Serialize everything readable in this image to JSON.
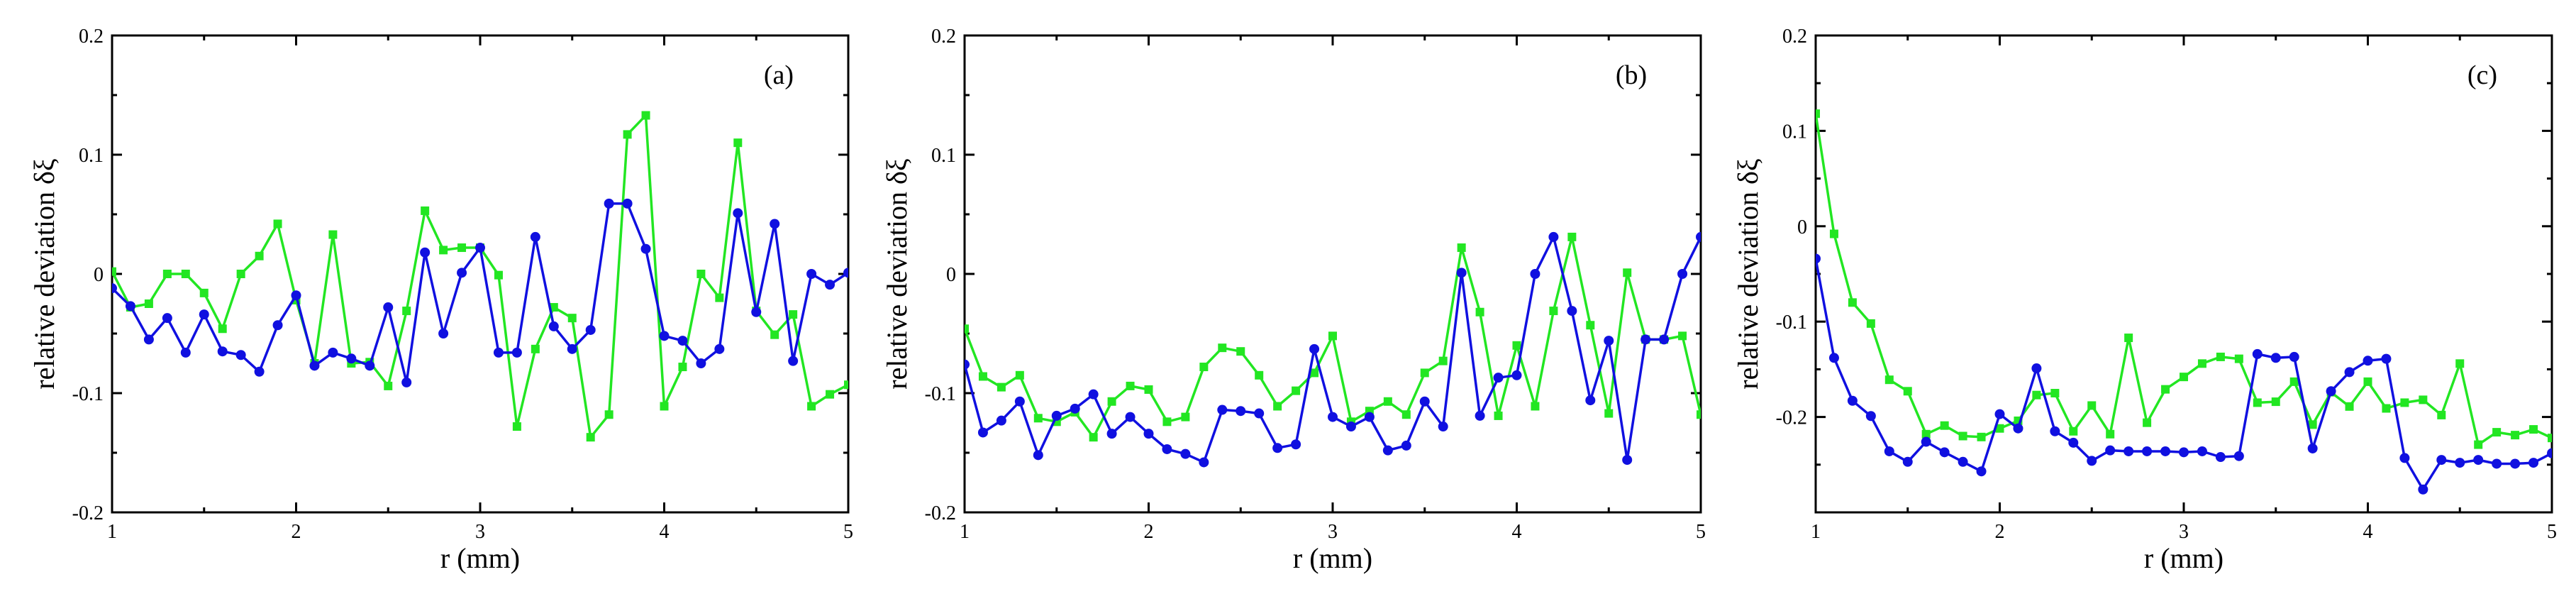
{
  "colors": {
    "blue": "#1010e0",
    "green": "#22e622"
  },
  "chart_data": [
    {
      "type": "line",
      "panel_label": "(a)",
      "xlabel": "r (mm)",
      "ylabel": "relative deviation δξ",
      "xlim": [
        1,
        5
      ],
      "ylim": [
        -0.2,
        0.2
      ],
      "xticks": [
        1,
        2,
        3,
        4,
        5
      ],
      "xtick_labels": [
        "1",
        "2",
        "3",
        "4",
        "5"
      ],
      "yticks": [
        -0.2,
        -0.1,
        0,
        0.1,
        0.2
      ],
      "ytick_labels": [
        "-0.2",
        "-0.1",
        "0",
        "0.1",
        "0.2"
      ],
      "series": [
        {
          "color": "blue",
          "marker": "circle",
          "x": [
            1.0,
            1.1,
            1.2,
            1.3,
            1.4,
            1.5,
            1.6,
            1.7,
            1.8,
            1.9,
            2.0,
            2.1,
            2.2,
            2.3,
            2.4,
            2.5,
            2.6,
            2.7,
            2.8,
            2.9,
            3.0,
            3.1,
            3.2,
            3.3,
            3.4,
            3.5,
            3.6,
            3.7,
            3.8,
            3.9,
            4.0,
            4.1,
            4.2,
            4.3,
            4.4,
            4.5,
            4.6,
            4.7,
            4.8,
            4.9,
            5.0
          ],
          "y": [
            -0.012,
            -0.027,
            -0.055,
            -0.037,
            -0.066,
            -0.034,
            -0.065,
            -0.068,
            -0.082,
            -0.043,
            -0.018,
            -0.077,
            -0.066,
            -0.071,
            -0.077,
            -0.028,
            -0.091,
            0.018,
            -0.05,
            0.001,
            0.022,
            -0.066,
            -0.066,
            0.031,
            -0.044,
            -0.063,
            -0.047,
            0.059,
            0.059,
            0.021,
            -0.052,
            -0.056,
            -0.075,
            -0.063,
            0.051,
            -0.032,
            0.042,
            -0.073,
            0.0,
            -0.009,
            0.001
          ]
        },
        {
          "color": "green",
          "marker": "square",
          "x": [
            1.0,
            1.1,
            1.2,
            1.3,
            1.4,
            1.5,
            1.6,
            1.7,
            1.8,
            1.9,
            2.0,
            2.1,
            2.2,
            2.3,
            2.4,
            2.5,
            2.6,
            2.7,
            2.8,
            2.9,
            3.0,
            3.1,
            3.2,
            3.3,
            3.4,
            3.5,
            3.6,
            3.7,
            3.8,
            3.9,
            4.0,
            4.1,
            4.2,
            4.3,
            4.4,
            4.5,
            4.6,
            4.7,
            4.8,
            4.9,
            5.0
          ],
          "y": [
            0.002,
            -0.028,
            -0.025,
            0.0,
            0.0,
            -0.016,
            -0.046,
            0.0,
            0.015,
            0.042,
            -0.022,
            -0.075,
            0.033,
            -0.075,
            -0.074,
            -0.094,
            -0.031,
            0.053,
            0.02,
            0.022,
            0.022,
            -0.001,
            -0.128,
            -0.063,
            -0.028,
            -0.037,
            -0.137,
            -0.118,
            0.117,
            0.133,
            -0.111,
            -0.078,
            0.0,
            -0.02,
            0.11,
            -0.031,
            -0.051,
            -0.034,
            -0.111,
            -0.101,
            -0.093
          ]
        }
      ]
    },
    {
      "type": "line",
      "panel_label": "(b)",
      "xlabel": "r (mm)",
      "ylabel": "relative deviation δξ",
      "xlim": [
        1,
        5
      ],
      "ylim": [
        -0.2,
        0.2
      ],
      "xticks": [
        1,
        2,
        3,
        4,
        5
      ],
      "xtick_labels": [
        "1",
        "2",
        "3",
        "4",
        "5"
      ],
      "yticks": [
        -0.2,
        -0.1,
        0,
        0.1,
        0.2
      ],
      "ytick_labels": [
        "-0.2",
        "-0.1",
        "0",
        "0.1",
        "0.2"
      ],
      "series": [
        {
          "color": "blue",
          "marker": "circle",
          "x": [
            1.0,
            1.1,
            1.2,
            1.3,
            1.4,
            1.5,
            1.6,
            1.7,
            1.8,
            1.9,
            2.0,
            2.1,
            2.2,
            2.3,
            2.4,
            2.5,
            2.6,
            2.7,
            2.8,
            2.9,
            3.0,
            3.1,
            3.2,
            3.3,
            3.4,
            3.5,
            3.6,
            3.7,
            3.8,
            3.9,
            4.0,
            4.1,
            4.2,
            4.3,
            4.4,
            4.5,
            4.6,
            4.7,
            4.8,
            4.9,
            5.0
          ],
          "y": [
            -0.076,
            -0.133,
            -0.123,
            -0.107,
            -0.152,
            -0.119,
            -0.113,
            -0.101,
            -0.134,
            -0.12,
            -0.134,
            -0.147,
            -0.151,
            -0.158,
            -0.114,
            -0.115,
            -0.117,
            -0.146,
            -0.143,
            -0.063,
            -0.12,
            -0.128,
            -0.12,
            -0.148,
            -0.144,
            -0.107,
            -0.128,
            0.001,
            -0.119,
            -0.087,
            -0.085,
            0.0,
            0.031,
            -0.031,
            -0.106,
            -0.056,
            -0.156,
            -0.055,
            -0.055,
            0.0,
            0.031
          ]
        },
        {
          "color": "green",
          "marker": "square",
          "x": [
            1.0,
            1.1,
            1.2,
            1.3,
            1.4,
            1.5,
            1.6,
            1.7,
            1.8,
            1.9,
            2.0,
            2.1,
            2.2,
            2.3,
            2.4,
            2.5,
            2.6,
            2.7,
            2.8,
            2.9,
            3.0,
            3.1,
            3.2,
            3.3,
            3.4,
            3.5,
            3.6,
            3.7,
            3.8,
            3.9,
            4.0,
            4.1,
            4.2,
            4.3,
            4.4,
            4.5,
            4.6,
            4.7,
            4.8,
            4.9,
            5.0
          ],
          "y": [
            -0.046,
            -0.086,
            -0.095,
            -0.085,
            -0.121,
            -0.124,
            -0.116,
            -0.137,
            -0.107,
            -0.094,
            -0.097,
            -0.124,
            -0.12,
            -0.078,
            -0.062,
            -0.065,
            -0.085,
            -0.111,
            -0.098,
            -0.083,
            -0.052,
            -0.124,
            -0.115,
            -0.107,
            -0.118,
            -0.083,
            -0.073,
            0.022,
            -0.032,
            -0.119,
            -0.06,
            -0.111,
            -0.031,
            0.031,
            -0.043,
            -0.117,
            0.001,
            -0.055,
            -0.055,
            -0.052,
            -0.118
          ]
        }
      ]
    },
    {
      "type": "line",
      "panel_label": "(c)",
      "xlabel": "r (mm)",
      "ylabel": "relative deviation δξ",
      "xlim": [
        1,
        5
      ],
      "ylim": [
        -0.3,
        0.2
      ],
      "xticks": [
        1,
        2,
        3,
        4,
        5
      ],
      "xtick_labels": [
        "1",
        "2",
        "3",
        "4",
        "5"
      ],
      "yticks": [
        -0.2,
        -0.1,
        0,
        0.1,
        0.2
      ],
      "ytick_labels": [
        "-0.2",
        "-0.1",
        "0",
        "0.1",
        "0.2"
      ],
      "series": [
        {
          "color": "blue",
          "marker": "circle",
          "x": [
            1.0,
            1.1,
            1.2,
            1.3,
            1.4,
            1.5,
            1.6,
            1.7,
            1.8,
            1.9,
            2.0,
            2.1,
            2.2,
            2.3,
            2.4,
            2.5,
            2.6,
            2.7,
            2.8,
            2.9,
            3.0,
            3.1,
            3.2,
            3.3,
            3.4,
            3.5,
            3.6,
            3.7,
            3.8,
            3.9,
            4.0,
            4.1,
            4.2,
            4.3,
            4.4,
            4.5,
            4.6,
            4.7,
            4.8,
            4.9,
            5.0
          ],
          "y": [
            -0.034,
            -0.138,
            -0.183,
            -0.199,
            -0.236,
            -0.247,
            -0.226,
            -0.237,
            -0.247,
            -0.257,
            -0.197,
            -0.212,
            -0.149,
            -0.215,
            -0.227,
            -0.246,
            -0.235,
            -0.236,
            -0.236,
            -0.236,
            -0.237,
            -0.236,
            -0.242,
            -0.241,
            -0.134,
            -0.138,
            -0.137,
            -0.233,
            -0.173,
            -0.153,
            -0.141,
            -0.139,
            -0.243,
            -0.276,
            -0.245,
            -0.248,
            -0.245,
            -0.249,
            -0.249,
            -0.248,
            -0.238
          ]
        },
        {
          "color": "green",
          "marker": "square",
          "x": [
            1.0,
            1.1,
            1.2,
            1.3,
            1.4,
            1.5,
            1.6,
            1.7,
            1.8,
            1.9,
            2.0,
            2.1,
            2.2,
            2.3,
            2.4,
            2.5,
            2.6,
            2.7,
            2.8,
            2.9,
            3.0,
            3.1,
            3.2,
            3.3,
            3.4,
            3.5,
            3.6,
            3.7,
            3.8,
            3.9,
            4.0,
            4.1,
            4.2,
            4.3,
            4.4,
            4.5,
            4.6,
            4.7,
            4.8,
            4.9,
            5.0
          ],
          "y": [
            0.118,
            -0.008,
            -0.08,
            -0.102,
            -0.161,
            -0.173,
            -0.218,
            -0.209,
            -0.22,
            -0.221,
            -0.212,
            -0.204,
            -0.177,
            -0.175,
            -0.215,
            -0.188,
            -0.218,
            -0.117,
            -0.206,
            -0.171,
            -0.158,
            -0.144,
            -0.137,
            -0.139,
            -0.185,
            -0.184,
            -0.163,
            -0.208,
            -0.174,
            -0.189,
            -0.163,
            -0.191,
            -0.185,
            -0.182,
            -0.198,
            -0.144,
            -0.229,
            -0.216,
            -0.219,
            -0.213,
            -0.222
          ]
        }
      ]
    }
  ]
}
